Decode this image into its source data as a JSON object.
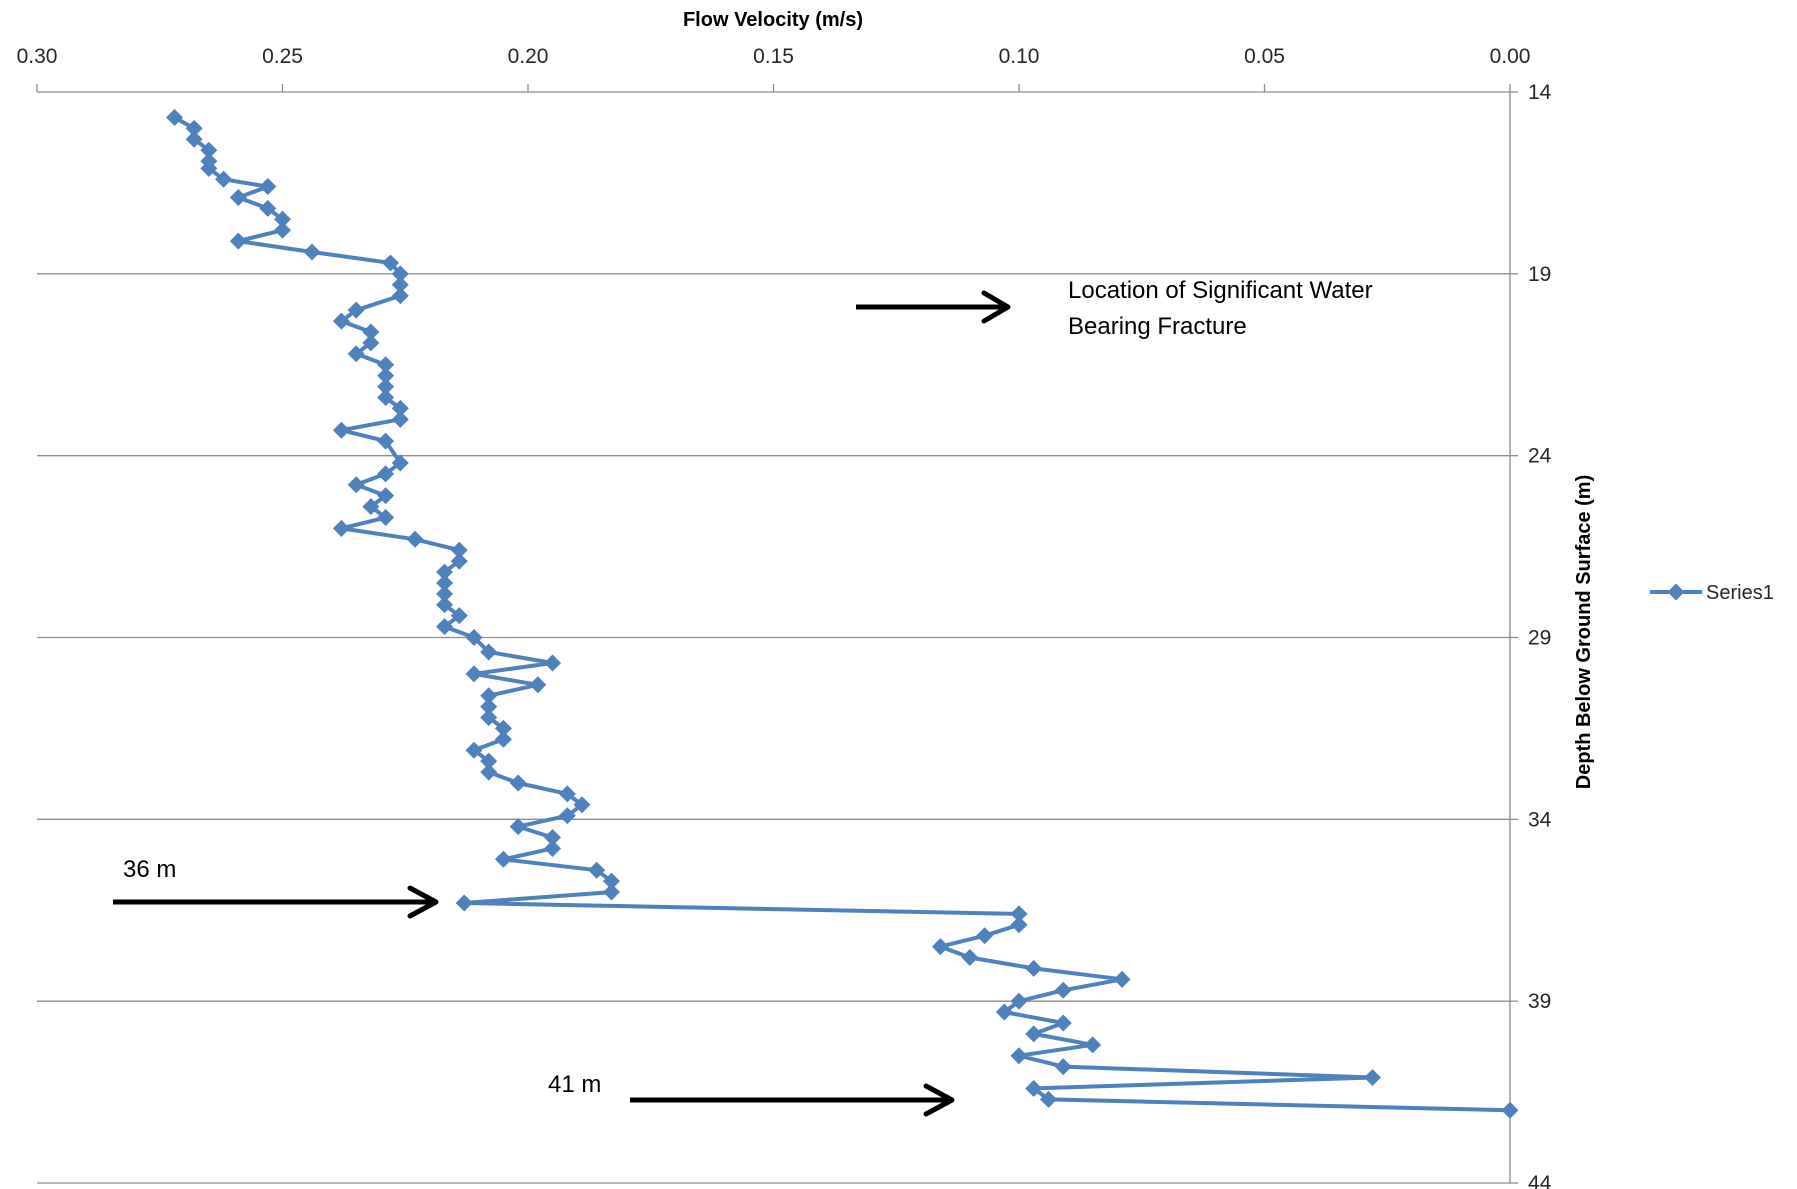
{
  "chart_data": {
    "type": "line",
    "title": "",
    "xlabel": "Flow Velocity (m/s)",
    "ylabel": "Depth Below Ground Surface (m)",
    "xlim": [
      0.3,
      0.0
    ],
    "ylim": [
      14,
      44
    ],
    "x_reversed": true,
    "y_reversed": true,
    "x_axis_position": "top",
    "y_axis_position": "right",
    "x_ticks": [
      "0.30",
      "0.25",
      "0.20",
      "0.15",
      "0.10",
      "0.05",
      "0.00"
    ],
    "x_tick_values": [
      0.3,
      0.25,
      0.2,
      0.15,
      0.1,
      0.05,
      0.0
    ],
    "y_ticks": [
      "14",
      "19",
      "24",
      "29",
      "34",
      "39",
      "44"
    ],
    "y_tick_values": [
      14,
      19,
      24,
      29,
      34,
      39,
      44
    ],
    "horizontal_grid": true,
    "legend_position": "right",
    "series_color": "#4f81bd",
    "annotation_color": "#000000",
    "series": [
      {
        "name": "Series1",
        "points": [
          [
            0.272,
            14.7
          ],
          [
            0.268,
            15.0
          ],
          [
            0.268,
            15.3
          ],
          [
            0.265,
            15.6
          ],
          [
            0.265,
            15.9
          ],
          [
            0.265,
            16.1
          ],
          [
            0.262,
            16.4
          ],
          [
            0.253,
            16.6
          ],
          [
            0.259,
            16.9
          ],
          [
            0.253,
            17.2
          ],
          [
            0.25,
            17.5
          ],
          [
            0.25,
            17.8
          ],
          [
            0.259,
            18.1
          ],
          [
            0.244,
            18.4
          ],
          [
            0.228,
            18.7
          ],
          [
            0.226,
            19.0
          ],
          [
            0.226,
            19.3
          ],
          [
            0.226,
            19.6
          ],
          [
            0.235,
            20.0
          ],
          [
            0.238,
            20.3
          ],
          [
            0.232,
            20.6
          ],
          [
            0.232,
            20.9
          ],
          [
            0.235,
            21.2
          ],
          [
            0.229,
            21.5
          ],
          [
            0.229,
            21.8
          ],
          [
            0.229,
            22.1
          ],
          [
            0.229,
            22.4
          ],
          [
            0.226,
            22.7
          ],
          [
            0.226,
            23.0
          ],
          [
            0.238,
            23.3
          ],
          [
            0.229,
            23.6
          ],
          [
            0.226,
            24.2
          ],
          [
            0.229,
            24.5
          ],
          [
            0.235,
            24.8
          ],
          [
            0.229,
            25.1
          ],
          [
            0.232,
            25.4
          ],
          [
            0.229,
            25.7
          ],
          [
            0.238,
            26.0
          ],
          [
            0.223,
            26.3
          ],
          [
            0.214,
            26.6
          ],
          [
            0.214,
            26.9
          ],
          [
            0.217,
            27.2
          ],
          [
            0.217,
            27.5
          ],
          [
            0.217,
            27.8
          ],
          [
            0.217,
            28.1
          ],
          [
            0.214,
            28.4
          ],
          [
            0.217,
            28.7
          ],
          [
            0.211,
            29.0
          ],
          [
            0.208,
            29.4
          ],
          [
            0.195,
            29.7
          ],
          [
            0.211,
            30.0
          ],
          [
            0.198,
            30.3
          ],
          [
            0.208,
            30.6
          ],
          [
            0.208,
            30.9
          ],
          [
            0.208,
            31.2
          ],
          [
            0.205,
            31.5
          ],
          [
            0.205,
            31.8
          ],
          [
            0.211,
            32.1
          ],
          [
            0.208,
            32.4
          ],
          [
            0.208,
            32.7
          ],
          [
            0.202,
            33.0
          ],
          [
            0.192,
            33.3
          ],
          [
            0.189,
            33.6
          ],
          [
            0.192,
            33.9
          ],
          [
            0.202,
            34.2
          ],
          [
            0.195,
            34.5
          ],
          [
            0.195,
            34.8
          ],
          [
            0.205,
            35.1
          ],
          [
            0.186,
            35.4
          ],
          [
            0.183,
            35.7
          ],
          [
            0.183,
            36.0
          ],
          [
            0.213,
            36.3
          ],
          [
            0.1,
            36.6
          ],
          [
            0.1,
            36.9
          ],
          [
            0.107,
            37.2
          ],
          [
            0.116,
            37.5
          ],
          [
            0.11,
            37.8
          ],
          [
            0.097,
            38.1
          ],
          [
            0.079,
            38.4
          ],
          [
            0.091,
            38.7
          ],
          [
            0.1,
            39.0
          ],
          [
            0.103,
            39.3
          ],
          [
            0.091,
            39.6
          ],
          [
            0.097,
            39.9
          ],
          [
            0.085,
            40.2
          ],
          [
            0.1,
            40.5
          ],
          [
            0.091,
            40.8
          ],
          [
            0.028,
            41.1
          ],
          [
            0.097,
            41.4
          ],
          [
            0.094,
            41.7
          ],
          [
            0.0,
            42.0
          ]
        ]
      }
    ],
    "annotations": [
      {
        "text": "Location  of Significant Water",
        "text2": "Bearing Fracture"
      },
      {
        "text": "36 m"
      },
      {
        "text": "41 m"
      }
    ]
  }
}
